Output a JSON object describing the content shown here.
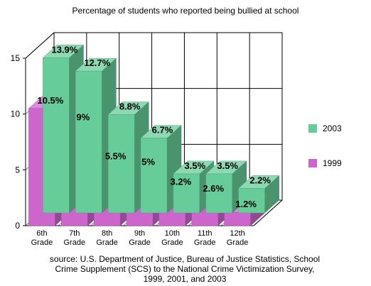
{
  "chart_data": {
    "type": "bar",
    "title": "Percentage of students who reported being bullied at school",
    "categories": [
      [
        "6th",
        "Grade"
      ],
      [
        "7th",
        "Grade"
      ],
      [
        "8th",
        "Grade"
      ],
      [
        "9th",
        "Grade"
      ],
      [
        "10th",
        "Grade"
      ],
      [
        "11th",
        "Grade"
      ],
      [
        "12th",
        "Grade"
      ]
    ],
    "series": [
      {
        "name": "2003",
        "values": [
          13.9,
          12.7,
          8.8,
          6.7,
          3.5,
          3.5,
          2.2
        ],
        "labels": [
          "13.9%",
          "12.7%",
          "8.8%",
          "6.7%",
          "3.5%",
          "3.5%",
          "2.2%"
        ],
        "color": "#66cc99"
      },
      {
        "name": "1999",
        "values": [
          10.5,
          9,
          5.5,
          5,
          3.2,
          2.6,
          1.2
        ],
        "labels": [
          "10.5%",
          "9%",
          "5.5%",
          "5%",
          "3.2%",
          "2.6%",
          "1.2%"
        ],
        "color": "#cc66cc"
      }
    ],
    "ylim": [
      0,
      15
    ],
    "yticks": [
      0,
      5,
      10,
      15
    ],
    "grid": true,
    "legend": "right",
    "three_d": true
  },
  "source_lines": [
    "source: U.S. Department of Justice, Bureau of Justice Statistics, School",
    "Crime Supplement (SCS) to the National Crime Victimization Survey,",
    "1999, 2001, and 2003"
  ]
}
